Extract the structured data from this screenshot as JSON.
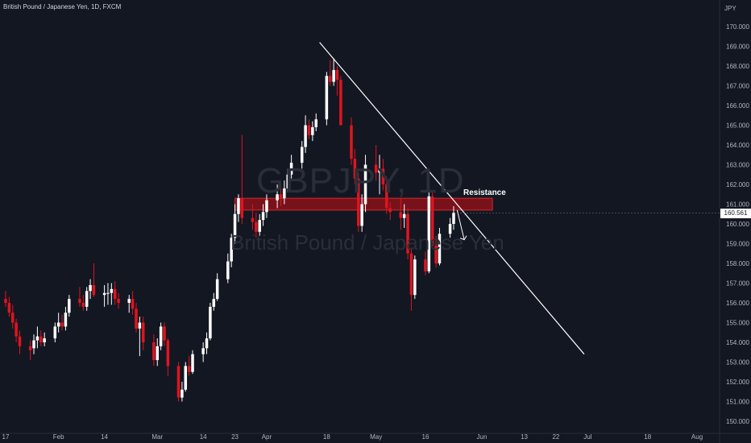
{
  "header": {
    "title": "British Pound / Japanese Yen, 1D, FXCM"
  },
  "watermark": {
    "symbol": "GBPJPY, 1D",
    "name": "British Pound / Japanese Yen"
  },
  "currency": "JPY",
  "last_price": "160.561",
  "annotations": {
    "resistance_label": "Resistance"
  },
  "colors": {
    "background": "#131722",
    "bull": "#ffffff",
    "bear": "#e0141e",
    "zone_fill": "#8b1219",
    "zone_border": "#d7262c",
    "trendline": "#ffffff",
    "axis_text": "#b2b5be"
  },
  "chart_data": {
    "type": "candlestick",
    "title": "British Pound / Japanese Yen, 1D, FXCM",
    "ylabel": "JPY",
    "ylim": [
      149.8,
      170.9
    ],
    "y_ticks": [
      "150.000",
      "151.000",
      "152.000",
      "153.000",
      "154.000",
      "155.000",
      "156.000",
      "157.000",
      "158.000",
      "159.000",
      "160.000",
      "161.000",
      "162.000",
      "163.000",
      "164.000",
      "165.000",
      "166.000",
      "167.000",
      "168.000",
      "169.000",
      "170.000"
    ],
    "x_ticks": [
      {
        "label": "17",
        "date": "2022-01-17"
      },
      {
        "label": "Feb",
        "date": "2022-02-01"
      },
      {
        "label": "14",
        "date": "2022-02-14"
      },
      {
        "label": "Mar",
        "date": "2022-03-01"
      },
      {
        "label": "14",
        "date": "2022-03-14"
      },
      {
        "label": "23",
        "date": "2022-03-23"
      },
      {
        "label": "Apr",
        "date": "2022-04-01"
      },
      {
        "label": "18",
        "date": "2022-04-18"
      },
      {
        "label": "May",
        "date": "2022-05-02"
      },
      {
        "label": "16",
        "date": "2022-05-16"
      },
      {
        "label": "Jun",
        "date": "2022-06-01"
      },
      {
        "label": "13",
        "date": "2022-06-13"
      },
      {
        "label": "22",
        "date": "2022-06-22"
      },
      {
        "label": "Jul",
        "date": "2022-07-01"
      },
      {
        "label": "18",
        "date": "2022-07-18"
      },
      {
        "label": "Aug",
        "date": "2022-08-01"
      }
    ],
    "candles": [
      {
        "date": "2022-01-14",
        "o": 156.6,
        "h": 156.9,
        "l": 155.9,
        "c": 156.3
      },
      {
        "date": "2022-01-17",
        "o": 156.2,
        "h": 156.6,
        "l": 155.8,
        "c": 156.0
      },
      {
        "date": "2022-01-18",
        "o": 156.0,
        "h": 156.3,
        "l": 155.3,
        "c": 155.5
      },
      {
        "date": "2022-01-19",
        "o": 155.5,
        "h": 155.9,
        "l": 154.7,
        "c": 155.0
      },
      {
        "date": "2022-01-20",
        "o": 155.0,
        "h": 155.2,
        "l": 154.0,
        "c": 154.3
      },
      {
        "date": "2022-01-21",
        "o": 154.3,
        "h": 154.6,
        "l": 153.4,
        "c": 153.8
      },
      {
        "date": "2022-01-24",
        "o": 153.8,
        "h": 154.1,
        "l": 153.1,
        "c": 153.6
      },
      {
        "date": "2022-01-25",
        "o": 153.7,
        "h": 154.4,
        "l": 153.4,
        "c": 154.1
      },
      {
        "date": "2022-01-26",
        "o": 154.1,
        "h": 154.8,
        "l": 153.7,
        "c": 154.3
      },
      {
        "date": "2022-01-27",
        "o": 154.3,
        "h": 154.6,
        "l": 153.8,
        "c": 154.0
      },
      {
        "date": "2022-01-28",
        "o": 154.0,
        "h": 154.5,
        "l": 153.8,
        "c": 154.2
      },
      {
        "date": "2022-01-31",
        "o": 154.2,
        "h": 155.0,
        "l": 154.0,
        "c": 154.8
      },
      {
        "date": "2022-02-01",
        "o": 154.8,
        "h": 155.5,
        "l": 154.5,
        "c": 155.0
      },
      {
        "date": "2022-02-02",
        "o": 155.0,
        "h": 155.4,
        "l": 154.6,
        "c": 154.8
      },
      {
        "date": "2022-02-03",
        "o": 154.8,
        "h": 155.8,
        "l": 154.6,
        "c": 155.5
      },
      {
        "date": "2022-02-04",
        "o": 155.5,
        "h": 156.4,
        "l": 155.3,
        "c": 156.2
      },
      {
        "date": "2022-02-07",
        "o": 156.2,
        "h": 156.8,
        "l": 155.8,
        "c": 156.0
      },
      {
        "date": "2022-02-08",
        "o": 156.0,
        "h": 156.4,
        "l": 155.6,
        "c": 155.8
      },
      {
        "date": "2022-02-09",
        "o": 155.8,
        "h": 156.8,
        "l": 155.6,
        "c": 156.6
      },
      {
        "date": "2022-02-10",
        "o": 156.6,
        "h": 157.2,
        "l": 156.2,
        "c": 156.9
      },
      {
        "date": "2022-02-11",
        "o": 156.9,
        "h": 158.0,
        "l": 156.3,
        "c": 156.4
      },
      {
        "date": "2022-02-14",
        "o": 156.4,
        "h": 156.9,
        "l": 155.8,
        "c": 156.5
      },
      {
        "date": "2022-02-15",
        "o": 156.5,
        "h": 157.0,
        "l": 155.9,
        "c": 156.5
      },
      {
        "date": "2022-02-16",
        "o": 156.5,
        "h": 157.0,
        "l": 155.9,
        "c": 156.7
      },
      {
        "date": "2022-02-17",
        "o": 156.7,
        "h": 157.1,
        "l": 155.9,
        "c": 156.2
      },
      {
        "date": "2022-02-18",
        "o": 156.2,
        "h": 156.5,
        "l": 155.7,
        "c": 156.0
      },
      {
        "date": "2022-02-21",
        "o": 156.0,
        "h": 156.4,
        "l": 155.5,
        "c": 156.2
      },
      {
        "date": "2022-02-22",
        "o": 156.2,
        "h": 156.6,
        "l": 155.4,
        "c": 155.7
      },
      {
        "date": "2022-02-23",
        "o": 155.7,
        "h": 156.0,
        "l": 154.5,
        "c": 154.7
      },
      {
        "date": "2022-02-24",
        "o": 154.7,
        "h": 155.3,
        "l": 153.3,
        "c": 155.0
      },
      {
        "date": "2022-02-25",
        "o": 155.0,
        "h": 155.3,
        "l": 153.6,
        "c": 154.0
      },
      {
        "date": "2022-02-28",
        "o": 154.0,
        "h": 154.4,
        "l": 152.8,
        "c": 153.1
      },
      {
        "date": "2022-03-01",
        "o": 153.1,
        "h": 154.2,
        "l": 152.8,
        "c": 153.8
      },
      {
        "date": "2022-03-02",
        "o": 153.8,
        "h": 155.0,
        "l": 153.6,
        "c": 154.8
      },
      {
        "date": "2022-03-03",
        "o": 154.8,
        "h": 155.0,
        "l": 153.8,
        "c": 154.1
      },
      {
        "date": "2022-03-04",
        "o": 154.1,
        "h": 154.2,
        "l": 152.3,
        "c": 152.8
      },
      {
        "date": "2022-03-07",
        "o": 152.8,
        "h": 153.0,
        "l": 151.0,
        "c": 151.2
      },
      {
        "date": "2022-03-08",
        "o": 151.2,
        "h": 152.0,
        "l": 151.0,
        "c": 151.6
      },
      {
        "date": "2022-03-09",
        "o": 151.6,
        "h": 153.0,
        "l": 151.5,
        "c": 152.8
      },
      {
        "date": "2022-03-10",
        "o": 152.8,
        "h": 153.3,
        "l": 152.3,
        "c": 152.5
      },
      {
        "date": "2022-03-11",
        "o": 152.5,
        "h": 153.6,
        "l": 152.4,
        "c": 153.4
      },
      {
        "date": "2022-03-14",
        "o": 153.4,
        "h": 154.0,
        "l": 153.0,
        "c": 153.7
      },
      {
        "date": "2022-03-15",
        "o": 153.7,
        "h": 154.5,
        "l": 153.4,
        "c": 154.2
      },
      {
        "date": "2022-03-16",
        "o": 154.2,
        "h": 156.0,
        "l": 154.1,
        "c": 155.8
      },
      {
        "date": "2022-03-17",
        "o": 155.8,
        "h": 156.5,
        "l": 155.6,
        "c": 156.2
      },
      {
        "date": "2022-03-18",
        "o": 156.2,
        "h": 157.5,
        "l": 156.1,
        "c": 157.2
      },
      {
        "date": "2022-03-21",
        "o": 157.2,
        "h": 158.5,
        "l": 157.0,
        "c": 158.1
      },
      {
        "date": "2022-03-22",
        "o": 158.1,
        "h": 159.5,
        "l": 157.8,
        "c": 159.3
      },
      {
        "date": "2022-03-23",
        "o": 159.3,
        "h": 161.0,
        "l": 159.0,
        "c": 160.5
      },
      {
        "date": "2022-03-24",
        "o": 160.5,
        "h": 161.5,
        "l": 160.1,
        "c": 161.3
      },
      {
        "date": "2022-03-25",
        "o": 161.3,
        "h": 164.5,
        "l": 160.0,
        "c": 160.3
      },
      {
        "date": "2022-03-28",
        "o": 160.3,
        "h": 161.0,
        "l": 159.7,
        "c": 160.1
      },
      {
        "date": "2022-03-29",
        "o": 160.1,
        "h": 160.6,
        "l": 159.3,
        "c": 159.6
      },
      {
        "date": "2022-03-30",
        "o": 159.6,
        "h": 160.5,
        "l": 159.4,
        "c": 160.2
      },
      {
        "date": "2022-03-31",
        "o": 160.2,
        "h": 161.0,
        "l": 159.9,
        "c": 160.6
      },
      {
        "date": "2022-04-01",
        "o": 160.6,
        "h": 161.5,
        "l": 160.3,
        "c": 161.2
      },
      {
        "date": "2022-04-04",
        "o": 161.2,
        "h": 162.0,
        "l": 160.8,
        "c": 161.5
      },
      {
        "date": "2022-04-05",
        "o": 161.5,
        "h": 162.0,
        "l": 160.9,
        "c": 161.3
      },
      {
        "date": "2022-04-06",
        "o": 161.3,
        "h": 162.2,
        "l": 161.0,
        "c": 161.8
      },
      {
        "date": "2022-04-07",
        "o": 161.8,
        "h": 162.8,
        "l": 161.6,
        "c": 162.5
      },
      {
        "date": "2022-04-08",
        "o": 162.5,
        "h": 163.5,
        "l": 162.3,
        "c": 163.1
      },
      {
        "date": "2022-04-11",
        "o": 163.1,
        "h": 164.2,
        "l": 162.8,
        "c": 163.9
      },
      {
        "date": "2022-04-12",
        "o": 163.9,
        "h": 165.5,
        "l": 163.6,
        "c": 165.0
      },
      {
        "date": "2022-04-13",
        "o": 165.0,
        "h": 165.3,
        "l": 164.3,
        "c": 164.5
      },
      {
        "date": "2022-04-14",
        "o": 164.5,
        "h": 165.2,
        "l": 164.2,
        "c": 164.9
      },
      {
        "date": "2022-04-15",
        "o": 164.9,
        "h": 165.6,
        "l": 164.7,
        "c": 165.3
      },
      {
        "date": "2022-04-18",
        "o": 165.3,
        "h": 167.7,
        "l": 165.0,
        "c": 167.5
      },
      {
        "date": "2022-04-19",
        "o": 167.5,
        "h": 168.3,
        "l": 167.0,
        "c": 167.2
      },
      {
        "date": "2022-04-20",
        "o": 167.2,
        "h": 168.4,
        "l": 167.0,
        "c": 167.8
      },
      {
        "date": "2022-04-21",
        "o": 167.8,
        "h": 168.0,
        "l": 166.5,
        "c": 167.3
      },
      {
        "date": "2022-04-22",
        "o": 167.3,
        "h": 167.5,
        "l": 165.0,
        "c": 165.0
      },
      {
        "date": "2022-04-25",
        "o": 165.0,
        "h": 165.4,
        "l": 163.0,
        "c": 163.3
      },
      {
        "date": "2022-04-26",
        "o": 163.3,
        "h": 163.8,
        "l": 162.0,
        "c": 162.3
      },
      {
        "date": "2022-04-27",
        "o": 162.3,
        "h": 162.6,
        "l": 159.6,
        "c": 159.9
      },
      {
        "date": "2022-04-28",
        "o": 159.9,
        "h": 161.5,
        "l": 159.6,
        "c": 161.0
      },
      {
        "date": "2022-04-29",
        "o": 161.0,
        "h": 163.5,
        "l": 160.6,
        "c": 163.0
      },
      {
        "date": "2022-05-02",
        "o": 163.0,
        "h": 164.0,
        "l": 162.2,
        "c": 162.6
      },
      {
        "date": "2022-05-03",
        "o": 162.6,
        "h": 163.5,
        "l": 161.5,
        "c": 162.8
      },
      {
        "date": "2022-05-04",
        "o": 162.8,
        "h": 163.3,
        "l": 161.7,
        "c": 162.0
      },
      {
        "date": "2022-05-05",
        "o": 162.0,
        "h": 162.4,
        "l": 160.5,
        "c": 160.8
      },
      {
        "date": "2022-05-06",
        "o": 160.8,
        "h": 161.1,
        "l": 160.2,
        "c": 160.6
      },
      {
        "date": "2022-05-09",
        "o": 160.6,
        "h": 161.3,
        "l": 159.7,
        "c": 160.3
      },
      {
        "date": "2022-05-10",
        "o": 160.3,
        "h": 161.0,
        "l": 159.8,
        "c": 160.5
      },
      {
        "date": "2022-05-11",
        "o": 160.5,
        "h": 160.8,
        "l": 158.2,
        "c": 158.5
      },
      {
        "date": "2022-05-12",
        "o": 158.5,
        "h": 158.8,
        "l": 155.6,
        "c": 156.4
      },
      {
        "date": "2022-05-13",
        "o": 156.4,
        "h": 158.4,
        "l": 156.2,
        "c": 158.2
      },
      {
        "date": "2022-05-16",
        "o": 158.2,
        "h": 158.6,
        "l": 157.4,
        "c": 157.6
      },
      {
        "date": "2022-05-17",
        "o": 157.6,
        "h": 161.8,
        "l": 157.5,
        "c": 161.4
      },
      {
        "date": "2022-05-18",
        "o": 161.4,
        "h": 161.6,
        "l": 158.8,
        "c": 158.9
      },
      {
        "date": "2022-05-19",
        "o": 158.9,
        "h": 159.4,
        "l": 157.8,
        "c": 158.0
      },
      {
        "date": "2022-05-20",
        "o": 158.0,
        "h": 159.8,
        "l": 157.9,
        "c": 159.5
      },
      {
        "date": "2022-05-23",
        "o": 159.5,
        "h": 160.3,
        "l": 159.3,
        "c": 160.0
      },
      {
        "date": "2022-05-24",
        "o": 160.0,
        "h": 160.9,
        "l": 159.7,
        "c": 160.561
      }
    ],
    "resistance_zone": {
      "label": "Resistance",
      "from": "2022-03-23",
      "to": "2022-06-04",
      "y_low": 160.7,
      "y_high": 161.3
    },
    "trendline": {
      "start": {
        "date": "2022-04-16",
        "y": 169.2
      },
      "end": {
        "date": "2022-06-30",
        "y": 153.4
      }
    },
    "projection_arrow": {
      "start": {
        "date": "2022-05-25",
        "y": 160.7
      },
      "end": {
        "date": "2022-05-27",
        "y": 159.2
      }
    },
    "last_value": 160.561
  }
}
